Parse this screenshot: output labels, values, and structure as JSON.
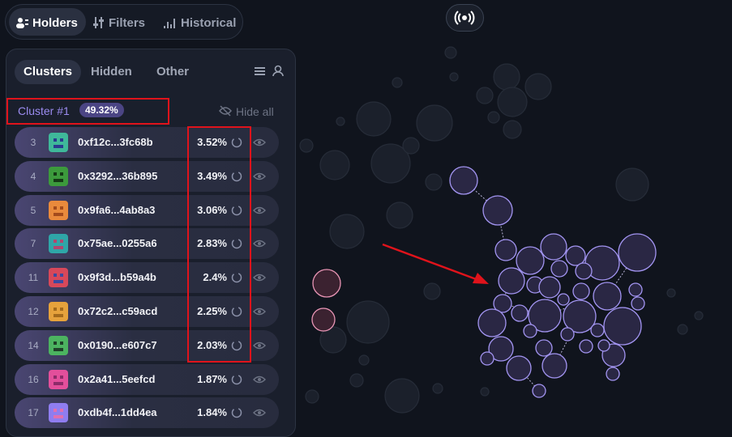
{
  "top_tabs": [
    "Holders",
    "Filters",
    "Historical"
  ],
  "panel_tabs": [
    "Clusters",
    "Hidden",
    "Other"
  ],
  "cluster": {
    "label": "Cluster #1",
    "share": "49.32%",
    "hide_all": "Hide all"
  },
  "rows": [
    {
      "rank": "3",
      "address": "0xf12c...3fc68b",
      "share": "3.52%"
    },
    {
      "rank": "4",
      "address": "0x3292...36b895",
      "share": "3.49%"
    },
    {
      "rank": "5",
      "address": "0x9fa6...4ab8a3",
      "share": "3.06%"
    },
    {
      "rank": "7",
      "address": "0x75ae...0255a6",
      "share": "2.83%"
    },
    {
      "rank": "11",
      "address": "0x9f3d...b59a4b",
      "share": "2.4%"
    },
    {
      "rank": "12",
      "address": "0x72c2...c59acd",
      "share": "2.25%"
    },
    {
      "rank": "14",
      "address": "0x0190...e607c7",
      "share": "2.03%"
    },
    {
      "rank": "16",
      "address": "0x2a41...5eefcd",
      "share": "1.87%"
    },
    {
      "rank": "17",
      "address": "0xdb4f...1dd4ea",
      "share": "1.84%"
    }
  ]
}
